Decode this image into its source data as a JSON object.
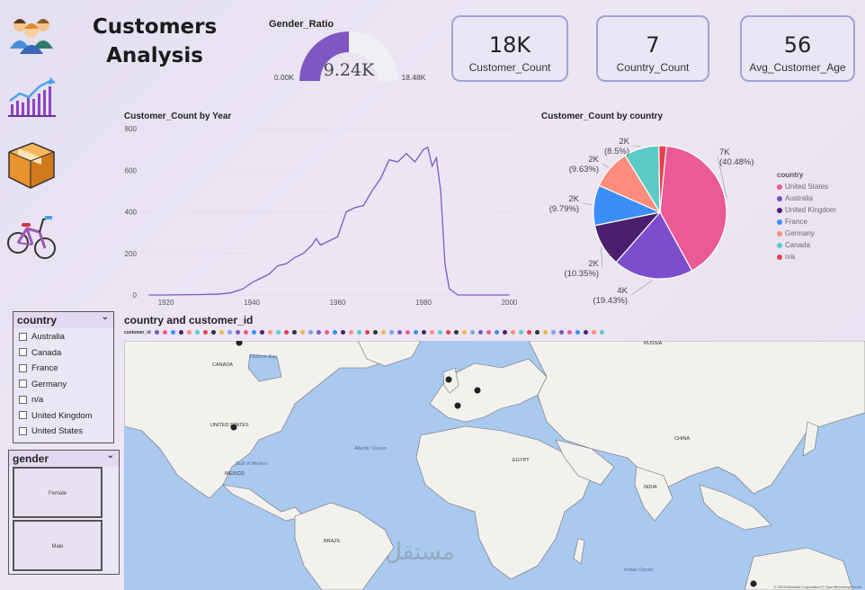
{
  "title_line1": "Customers",
  "title_line2": "Analysis",
  "gauge": {
    "title": "Gender_Ratio",
    "value_label": "9.24K",
    "min_label": "0.00K",
    "max_label": "18.48K",
    "value": 9.24,
    "min": 0,
    "max": 18.48,
    "fill_color": "#7e57c2",
    "track_color": "#f0eff4"
  },
  "kpis": [
    {
      "value": "18K",
      "label": "Customer_Count"
    },
    {
      "value": "7",
      "label": "Country_Count"
    },
    {
      "value": "56",
      "label": "Avg_Customer_Age"
    }
  ],
  "nav_icons": [
    "customers-group-icon",
    "growth-chart-icon",
    "package-box-icon",
    "bicycle-icon"
  ],
  "line_chart": {
    "title": "Customer_Count by Year",
    "chart_data": {
      "type": "line",
      "x": [
        1916,
        1920,
        1924,
        1928,
        1932,
        1935,
        1938,
        1940,
        1942,
        1944,
        1946,
        1948,
        1950,
        1952,
        1954,
        1955,
        1956,
        1958,
        1960,
        1962,
        1964,
        1966,
        1968,
        1970,
        1972,
        1974,
        1976,
        1978,
        1980,
        1981,
        1982,
        1983,
        1984,
        1985,
        1986,
        1988,
        1990,
        1995,
        2000
      ],
      "y": [
        0,
        0,
        1,
        2,
        4,
        10,
        30,
        60,
        80,
        100,
        140,
        150,
        180,
        200,
        240,
        270,
        240,
        260,
        280,
        400,
        420,
        430,
        500,
        560,
        650,
        640,
        680,
        640,
        700,
        710,
        620,
        660,
        500,
        150,
        30,
        0,
        0,
        0,
        0
      ],
      "xticks": [
        "1920",
        "1940",
        "1960",
        "1980",
        "2000"
      ],
      "yticks": [
        "0",
        "200",
        "400",
        "600",
        "800"
      ],
      "xlim": [
        1914,
        2002
      ],
      "ylim": [
        0,
        800
      ],
      "color": "#7e57c2"
    }
  },
  "pie_chart": {
    "title": "Customer_Count by country",
    "legend_title": "country",
    "chart_data": {
      "type": "pie",
      "categories": [
        "United States",
        "Australia",
        "United Kingdom",
        "France",
        "Germany",
        "Canada",
        "n/a"
      ],
      "values": [
        40.48,
        19.43,
        10.35,
        9.79,
        9.63,
        8.5,
        1.82
      ],
      "colors": [
        "#ea5a96",
        "#7c4dcc",
        "#4b1f6e",
        "#3b8ef6",
        "#fc8d7c",
        "#5ccbc6",
        "#e8404d"
      ],
      "data_labels": [
        {
          "value": "7K",
          "pct": "(40.48%)"
        },
        {
          "value": "4K",
          "pct": "(19.43%)"
        },
        {
          "value": "2K",
          "pct": "(10.35%)"
        },
        {
          "value": "2K",
          "pct": "(9.79%)"
        },
        {
          "value": "2K",
          "pct": "(9.63%)"
        },
        {
          "value": "2K",
          "pct": "(8.5%)"
        }
      ]
    }
  },
  "country_slicer": {
    "header": "country",
    "items": [
      "Australia",
      "Canada",
      "France",
      "Germany",
      "n/a",
      "United Kingdom",
      "United States"
    ]
  },
  "gender_slicer": {
    "header": "gender",
    "items": [
      "Female",
      "Male"
    ]
  },
  "map": {
    "title": "country and customer_id",
    "legend_title": "customer_id",
    "ocean_labels": [
      "Atlantic Ocean",
      "Indian Ocean",
      "Gulf of Mexico",
      "Hudson Bay"
    ],
    "country_labels": [
      "CANADA",
      "UNITED STATES",
      "RUSSIA",
      "CHINA",
      "BRAZIL",
      "INDIA",
      "EGYPT",
      "MEXICO"
    ],
    "attribution": "© 2023 Microsoft Corporation © OpenStreetMap Terms",
    "watermark": "مستقل"
  }
}
